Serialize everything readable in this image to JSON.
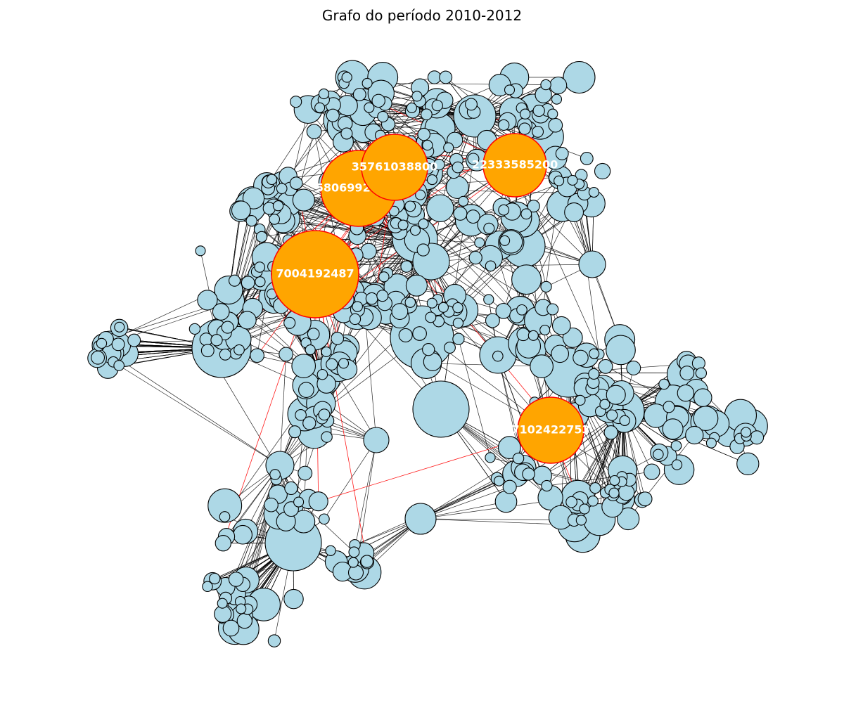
{
  "title": "Grafo do período 2010-2012",
  "colors": {
    "node_fill": "#add8e6",
    "highlight_fill": "#ffa500",
    "node_stroke": "#000000",
    "highlight_stroke": "#ff0000",
    "edge": "#000000",
    "highlight_edge": "#ff0000",
    "label": "#ffffff"
  },
  "highlighted_nodes": [
    {
      "id": "h1",
      "label": "7004192487"
    },
    {
      "id": "h2",
      "label": "58069927800"
    },
    {
      "id": "h3",
      "label": "35761038800"
    },
    {
      "id": "h4",
      "label": "22333585200"
    },
    {
      "id": "h5",
      "label": "7102422753"
    }
  ]
}
